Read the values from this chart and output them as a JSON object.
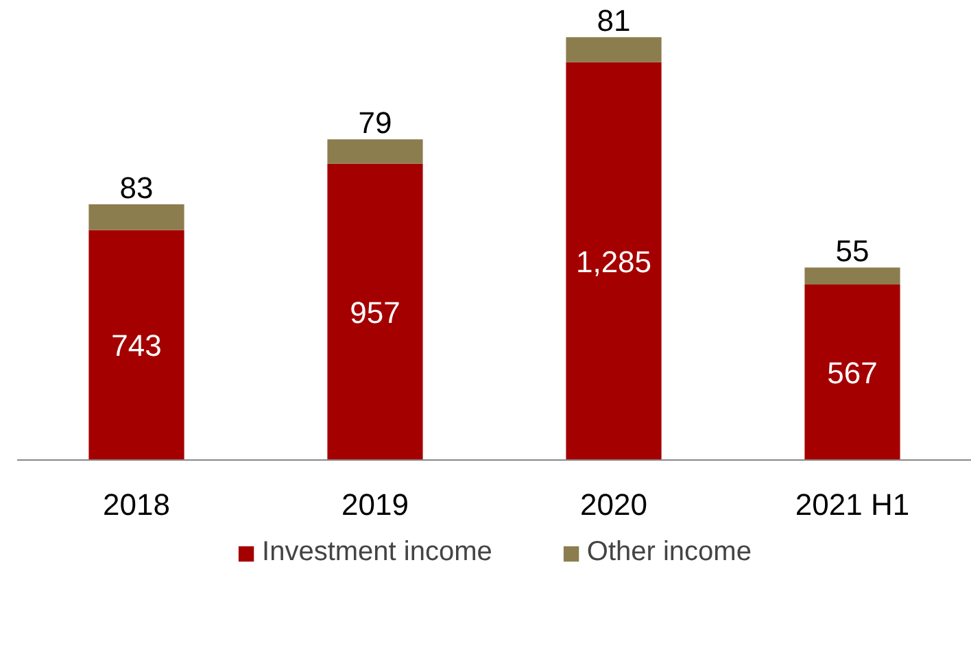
{
  "chart_data": {
    "type": "bar",
    "stacked": true,
    "categories": [
      "2018",
      "2019",
      "2020",
      "2021 H1"
    ],
    "series": [
      {
        "name": "Investment income",
        "color": "#a50000",
        "values": [
          743,
          957,
          1285,
          567
        ],
        "value_labels": [
          "743",
          "957",
          "1,285",
          "567"
        ]
      },
      {
        "name": "Other income",
        "color": "#8c7d4e",
        "values": [
          83,
          79,
          81,
          55
        ],
        "value_labels": [
          "83",
          "79",
          "81",
          "55"
        ]
      }
    ],
    "legend": "bottom"
  }
}
